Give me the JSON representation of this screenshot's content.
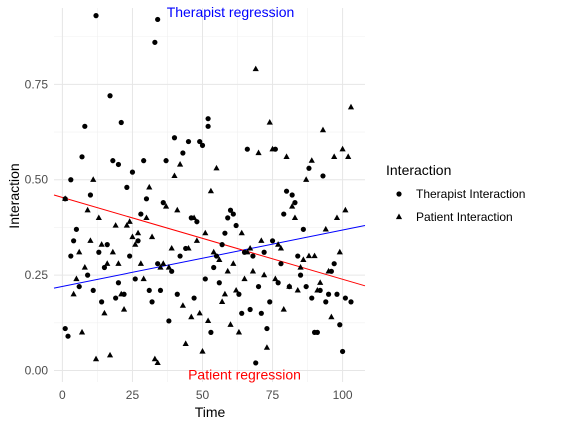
{
  "chart_data": {
    "type": "scatter",
    "title": "",
    "xlabel": "Time",
    "ylabel": "Interaction",
    "xlim": [
      -3,
      108
    ],
    "ylim": [
      -0.03,
      0.95
    ],
    "x_ticks": [
      0,
      25,
      50,
      75,
      100
    ],
    "y_ticks": [
      0.0,
      0.25,
      0.5,
      0.75
    ],
    "y_tick_labels": [
      "0.00",
      "0.25",
      "0.50",
      "0.75"
    ],
    "x_tick_labels": [
      "0",
      "25",
      "50",
      "75",
      "100"
    ],
    "grid": true,
    "legend": {
      "title": "Interaction",
      "position": "right",
      "entries": [
        {
          "label": "Therapist Interaction",
          "shape": "circle"
        },
        {
          "label": "Patient Interaction",
          "shape": "triangle"
        }
      ]
    },
    "annotations": [
      {
        "text": "Therapist regression",
        "x": 60,
        "y": 0.94,
        "color": "#0000ff"
      },
      {
        "text": "Patient regression",
        "x": 65,
        "y": -0.01,
        "color": "#ff0000"
      }
    ],
    "regression_lines": [
      {
        "name": "Therapist regression",
        "color": "#0000ff",
        "x": [
          -3,
          108
        ],
        "y": [
          0.216,
          0.38
        ]
      },
      {
        "name": "Patient regression",
        "color": "#ff0000",
        "x": [
          -3,
          108
        ],
        "y": [
          0.46,
          0.222
        ]
      }
    ],
    "series": [
      {
        "name": "Therapist Interaction",
        "shape": "circle",
        "points": [
          [
            1,
            0.45
          ],
          [
            1,
            0.11
          ],
          [
            2,
            0.09
          ],
          [
            3,
            0.5
          ],
          [
            3,
            0.3
          ],
          [
            4,
            0.34
          ],
          [
            5,
            0.37
          ],
          [
            6,
            0.22
          ],
          [
            7,
            0.56
          ],
          [
            8,
            0.64
          ],
          [
            9,
            0.25
          ],
          [
            10,
            0.46
          ],
          [
            11,
            0.21
          ],
          [
            12,
            0.93
          ],
          [
            13,
            0.31
          ],
          [
            14,
            0.18
          ],
          [
            15,
            0.27
          ],
          [
            16,
            0.33
          ],
          [
            17,
            0.72
          ],
          [
            18,
            0.55
          ],
          [
            19,
            0.19
          ],
          [
            20,
            0.54
          ],
          [
            20,
            0.23
          ],
          [
            21,
            0.65
          ],
          [
            22,
            0.2
          ],
          [
            23,
            0.48
          ],
          [
            24,
            0.3
          ],
          [
            25,
            0.52
          ],
          [
            26,
            0.24
          ],
          [
            27,
            0.34
          ],
          [
            28,
            0.41
          ],
          [
            29,
            0.55
          ],
          [
            30,
            0.45
          ],
          [
            31,
            0.21
          ],
          [
            32,
            0.18
          ],
          [
            33,
            0.86
          ],
          [
            34,
            0.92
          ],
          [
            34,
            0.28
          ],
          [
            35,
            0.21
          ],
          [
            36,
            0.44
          ],
          [
            37,
            0.55
          ],
          [
            38,
            0.13
          ],
          [
            39,
            0.26
          ],
          [
            40,
            0.61
          ],
          [
            41,
            0.2
          ],
          [
            42,
            0.3
          ],
          [
            43,
            0.57
          ],
          [
            44,
            0.32
          ],
          [
            45,
            0.6
          ],
          [
            46,
            0.4
          ],
          [
            47,
            0.19
          ],
          [
            48,
            0.39
          ],
          [
            49,
            0.6
          ],
          [
            50,
            0.59
          ],
          [
            51,
            0.24
          ],
          [
            52,
            0.66
          ],
          [
            52,
            0.64
          ],
          [
            53,
            0.1
          ],
          [
            54,
            0.27
          ],
          [
            55,
            0.3
          ],
          [
            56,
            0.23
          ],
          [
            57,
            0.33
          ],
          [
            58,
            0.36
          ],
          [
            59,
            0.4
          ],
          [
            60,
            0.42
          ],
          [
            61,
            0.41
          ],
          [
            62,
            0.38
          ],
          [
            63,
            0.2
          ],
          [
            64,
            0.15
          ],
          [
            65,
            0.31
          ],
          [
            66,
            0.58
          ],
          [
            67,
            0.16
          ],
          [
            68,
            0.3
          ],
          [
            69,
            0.02
          ],
          [
            70,
            0.22
          ],
          [
            71,
            0.15
          ],
          [
            72,
            0.31
          ],
          [
            73,
            0.11
          ],
          [
            74,
            0.18
          ],
          [
            75,
            0.34
          ],
          [
            76,
            0.58
          ],
          [
            77,
            0.23
          ],
          [
            78,
            0.28
          ],
          [
            79,
            0.41
          ],
          [
            80,
            0.47
          ],
          [
            81,
            0.22
          ],
          [
            82,
            0.46
          ],
          [
            83,
            0.44
          ],
          [
            84,
            0.3
          ],
          [
            85,
            0.25
          ],
          [
            86,
            0.37
          ],
          [
            87,
            0.22
          ],
          [
            88,
            0.53
          ],
          [
            89,
            0.19
          ],
          [
            90,
            0.1
          ],
          [
            91,
            0.1
          ],
          [
            92,
            0.21
          ],
          [
            93,
            0.51
          ],
          [
            94,
            0.18
          ],
          [
            95,
            0.2
          ],
          [
            96,
            0.26
          ],
          [
            97,
            0.28
          ],
          [
            98,
            0.2
          ],
          [
            99,
            0.12
          ],
          [
            100,
            0.05
          ],
          [
            101,
            0.19
          ],
          [
            103,
            0.18
          ]
        ]
      },
      {
        "name": "Patient Interaction",
        "shape": "triangle",
        "points": [
          [
            1,
            0.45
          ],
          [
            4,
            0.2
          ],
          [
            5,
            0.24
          ],
          [
            6,
            0.31
          ],
          [
            7,
            0.1
          ],
          [
            8,
            0.27
          ],
          [
            9,
            0.42
          ],
          [
            10,
            0.34
          ],
          [
            11,
            0.5
          ],
          [
            12,
            0.03
          ],
          [
            13,
            0.4
          ],
          [
            14,
            0.33
          ],
          [
            15,
            0.15
          ],
          [
            16,
            0.28
          ],
          [
            17,
            0.04
          ],
          [
            18,
            0.31
          ],
          [
            19,
            0.38
          ],
          [
            20,
            0.28
          ],
          [
            21,
            0.2
          ],
          [
            22,
            0.16
          ],
          [
            23,
            0.38
          ],
          [
            24,
            0.39
          ],
          [
            25,
            0.35
          ],
          [
            26,
            0.33
          ],
          [
            27,
            0.36
          ],
          [
            28,
            0.28
          ],
          [
            29,
            0.24
          ],
          [
            30,
            0.4
          ],
          [
            31,
            0.48
          ],
          [
            32,
            0.35
          ],
          [
            33,
            0.03
          ],
          [
            34,
            0.02
          ],
          [
            35,
            0.27
          ],
          [
            36,
            0.28
          ],
          [
            37,
            0.43
          ],
          [
            38,
            0.27
          ],
          [
            39,
            0.32
          ],
          [
            40,
            0.51
          ],
          [
            41,
            0.42
          ],
          [
            42,
            0.54
          ],
          [
            43,
            0.17
          ],
          [
            44,
            0.07
          ],
          [
            45,
            0.32
          ],
          [
            46,
            0.14
          ],
          [
            47,
            0.4
          ],
          [
            48,
            0.34
          ],
          [
            49,
            0.15
          ],
          [
            50,
            0.05
          ],
          [
            51,
            0.36
          ],
          [
            52,
            0.13
          ],
          [
            53,
            0.47
          ],
          [
            54,
            0.31
          ],
          [
            55,
            0.53
          ],
          [
            56,
            0.29
          ],
          [
            57,
            0.18
          ],
          [
            58,
            0.2
          ],
          [
            59,
            0.26
          ],
          [
            60,
            0.12
          ],
          [
            61,
            0.28
          ],
          [
            62,
            0.21
          ],
          [
            63,
            0.1
          ],
          [
            64,
            0.36
          ],
          [
            65,
            0.24
          ],
          [
            66,
            0.31
          ],
          [
            67,
            0.32
          ],
          [
            68,
            0.26
          ],
          [
            69,
            0.79
          ],
          [
            70,
            0.57
          ],
          [
            71,
            0.34
          ],
          [
            72,
            0.25
          ],
          [
            73,
            0.06
          ],
          [
            74,
            0.65
          ],
          [
            75,
            0.58
          ],
          [
            76,
            0.24
          ],
          [
            77,
            0.33
          ],
          [
            78,
            0.32
          ],
          [
            79,
            0.16
          ],
          [
            80,
            0.56
          ],
          [
            81,
            0.22
          ],
          [
            82,
            0.43
          ],
          [
            83,
            0.4
          ],
          [
            84,
            0.21
          ],
          [
            85,
            0.27
          ],
          [
            86,
            0.29
          ],
          [
            87,
            0.5
          ],
          [
            88,
            0.3
          ],
          [
            89,
            0.55
          ],
          [
            90,
            0.3
          ],
          [
            91,
            0.21
          ],
          [
            92,
            0.23
          ],
          [
            93,
            0.63
          ],
          [
            94,
            0.37
          ],
          [
            95,
            0.26
          ],
          [
            96,
            0.14
          ],
          [
            97,
            0.56
          ],
          [
            98,
            0.4
          ],
          [
            99,
            0.31
          ],
          [
            100,
            0.58
          ],
          [
            101,
            0.42
          ],
          [
            102,
            0.56
          ],
          [
            103,
            0.69
          ]
        ]
      }
    ]
  }
}
